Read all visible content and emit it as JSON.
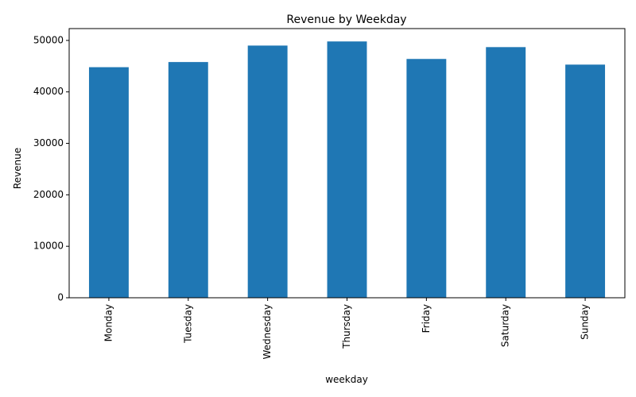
{
  "chart_data": {
    "type": "bar",
    "title": "Revenue by Weekday",
    "xlabel": "weekday",
    "ylabel": "Revenue",
    "categories": [
      "Monday",
      "Tuesday",
      "Wednesday",
      "Thursday",
      "Friday",
      "Saturday",
      "Sunday"
    ],
    "series": [
      {
        "values": [
          44800,
          45800,
          49000,
          49800,
          46400,
          48700,
          45300
        ]
      }
    ],
    "ylim": [
      0,
      52300
    ],
    "yticks": [
      0,
      10000,
      20000,
      30000,
      40000,
      50000
    ],
    "grid": false,
    "legend": "none",
    "bar_color": "#1f77b4"
  }
}
